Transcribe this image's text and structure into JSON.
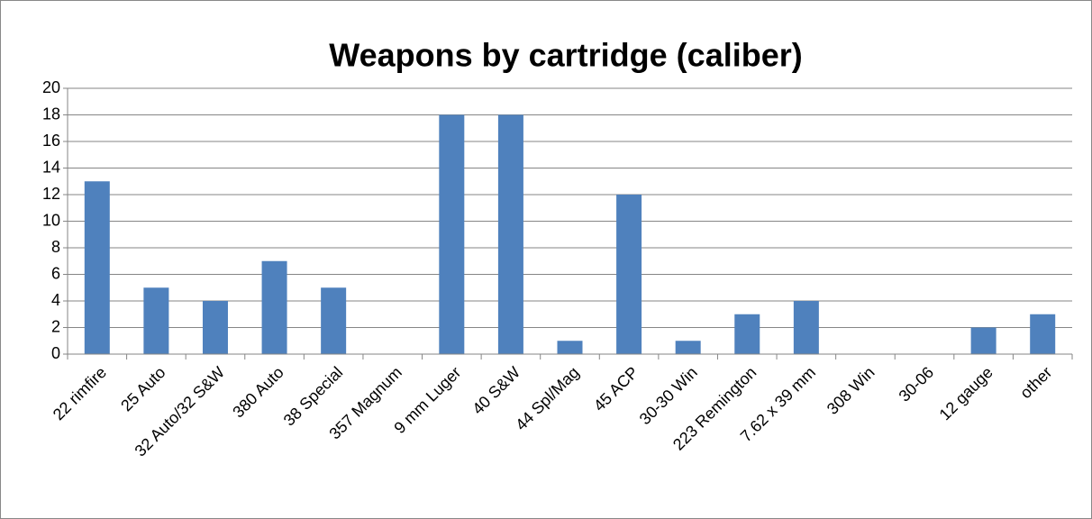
{
  "chart_data": {
    "type": "bar",
    "title": "Weapons by cartridge (caliber)",
    "categories": [
      "22 rimfire",
      "25 Auto",
      "32 Auto/32 S&W",
      "380 Auto",
      "38 Special",
      "357 Magnum",
      "9 mm Luger",
      "40 S&W",
      "44 Spl/Mag",
      "45 ACP",
      "30-30 Win",
      "223 Remington",
      "7.62 x 39 mm",
      "308 Win",
      "30-06",
      "12 gauge",
      "other"
    ],
    "values": [
      13,
      5,
      4,
      7,
      5,
      0,
      18,
      18,
      1,
      12,
      1,
      3,
      4,
      0,
      0,
      2,
      3
    ],
    "color": "#4f81bd",
    "ylim": [
      0,
      20
    ],
    "yticks": [
      0,
      2,
      4,
      6,
      8,
      10,
      12,
      14,
      16,
      18,
      20
    ],
    "grid": true
  }
}
